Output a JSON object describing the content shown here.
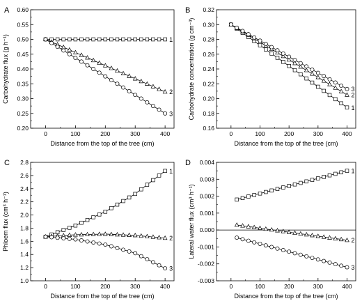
{
  "chart_data": [
    {
      "type": "line",
      "panel": "A",
      "xlabel": "Distance from the top of the tree (cm)",
      "ylabel": "Carbohydrate flux (g h⁻¹)",
      "xlim": [
        -50,
        430
      ],
      "ylim": [
        0.2,
        0.6
      ],
      "xticks": [
        0,
        100,
        200,
        300,
        400
      ],
      "yticks": [
        0.2,
        0.25,
        0.3,
        0.35,
        0.4,
        0.45,
        0.5,
        0.55,
        0.6
      ],
      "ytick_decimals": 2,
      "zero_line": false,
      "series": [
        {
          "name": "1",
          "marker": "square",
          "x": [
            0,
            400
          ],
          "y": [
            0.5,
            0.5
          ],
          "step": 20
        },
        {
          "name": "2",
          "marker": "triangle",
          "x": [
            0,
            400
          ],
          "y": [
            0.5,
            0.323
          ],
          "step": 20
        },
        {
          "name": "3",
          "marker": "circle",
          "x": [
            0,
            400
          ],
          "y": [
            0.5,
            0.25
          ],
          "step": 20
        }
      ]
    },
    {
      "type": "line",
      "panel": "B",
      "xlabel": "Distance from the top of the tree (cm)",
      "ylabel": "Carbohydrate concentration (g cm⁻³)",
      "xlim": [
        -50,
        430
      ],
      "ylim": [
        0.16,
        0.32
      ],
      "xticks": [
        0,
        100,
        200,
        300,
        400
      ],
      "yticks": [
        0.16,
        0.18,
        0.2,
        0.22,
        0.24,
        0.26,
        0.28,
        0.3,
        0.32
      ],
      "ytick_decimals": 2,
      "zero_line": false,
      "series": [
        {
          "name": "1",
          "marker": "square",
          "x": [
            0,
            400
          ],
          "y": [
            0.3,
            0.188
          ],
          "step": 20
        },
        {
          "name": "2",
          "marker": "triangle",
          "x": [
            0,
            400
          ],
          "y": [
            0.3,
            0.205
          ],
          "step": 20
        },
        {
          "name": "3",
          "marker": "circle",
          "x": [
            0,
            400
          ],
          "y": [
            0.3,
            0.213
          ],
          "step": 20
        }
      ]
    },
    {
      "type": "line",
      "panel": "C",
      "xlabel": "Distance from the top of the tree (cm)",
      "ylabel": "Phloem flux (cm³ h⁻¹)",
      "xlim": [
        -50,
        430
      ],
      "ylim": [
        1.0,
        2.8
      ],
      "xticks": [
        0,
        100,
        200,
        300,
        400
      ],
      "yticks": [
        1.0,
        1.2,
        1.4,
        1.6,
        1.8,
        2.0,
        2.2,
        2.4,
        2.6,
        2.8
      ],
      "ytick_decimals": 1,
      "zero_line": false,
      "series": [
        {
          "name": "1",
          "marker": "square",
          "x": [
            0,
            100,
            200,
            300,
            400
          ],
          "y": [
            1.67,
            1.84,
            2.05,
            2.32,
            2.67
          ],
          "step": 20
        },
        {
          "name": "2",
          "marker": "triangle",
          "x": [
            0,
            100,
            200,
            300,
            400
          ],
          "y": [
            1.67,
            1.7,
            1.71,
            1.69,
            1.65
          ],
          "step": 20
        },
        {
          "name": "3",
          "marker": "circle",
          "x": [
            0,
            100,
            200,
            300,
            400
          ],
          "y": [
            1.67,
            1.63,
            1.55,
            1.42,
            1.19
          ],
          "step": 20
        }
      ]
    },
    {
      "type": "line",
      "panel": "D",
      "xlabel": "Distance from the top of the tree (cm)",
      "ylabel": "Lateral water flux (cm³ h⁻¹)",
      "xlim": [
        -50,
        430
      ],
      "ylim": [
        -0.003,
        0.004
      ],
      "xticks": [
        0,
        100,
        200,
        300,
        400
      ],
      "yticks": [
        -0.003,
        -0.002,
        -0.001,
        0.0,
        0.001,
        0.002,
        0.003,
        0.004
      ],
      "ytick_decimals": 3,
      "zero_line": true,
      "series": [
        {
          "name": "1",
          "marker": "square",
          "x": [
            20,
            400
          ],
          "y": [
            0.0018,
            0.0035
          ],
          "step": 20
        },
        {
          "name": "2",
          "marker": "triangle",
          "x": [
            20,
            400
          ],
          "y": [
            0.0003,
            -0.0006
          ],
          "step": 20
        },
        {
          "name": "3",
          "marker": "circle",
          "x": [
            20,
            400
          ],
          "y": [
            -0.00045,
            -0.0022
          ],
          "step": 20
        }
      ]
    }
  ]
}
